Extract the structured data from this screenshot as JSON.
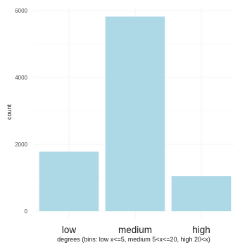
{
  "chart_data": {
    "type": "bar",
    "categories": [
      "low",
      "medium",
      "high"
    ],
    "values": [
      1780,
      5820,
      1050
    ],
    "xlabel": "degrees (bins: low x<=5, medium 5<x<=20, high 20<x)",
    "ylabel": "count",
    "ylim": [
      0,
      6000
    ],
    "yticks": [
      0,
      2000,
      4000,
      6000
    ],
    "grid": true,
    "bar_color": "#add8e6"
  }
}
